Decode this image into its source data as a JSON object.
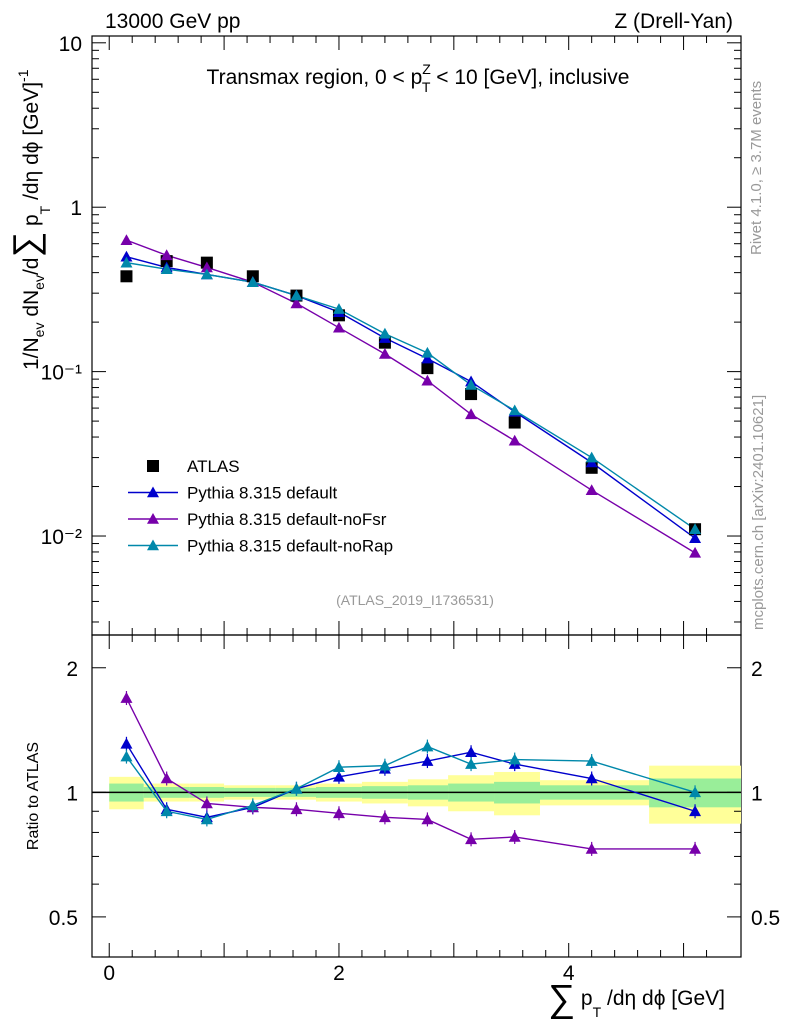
{
  "header": {
    "energy_label": "13000 GeV pp",
    "process_label": "Z (Drell-Yan)"
  },
  "side": {
    "rivet_label": "Rivet 4.1.0, ≥ 3.7M events",
    "mcplots_label": "mcplots.cern.ch [arXiv:2401.10621]"
  },
  "chart_data": [
    {
      "type": "scatter",
      "panel": "main",
      "title": "Transmax region, 0 < p_T^Z < 10 [GeV], inclusive",
      "ylabel": "1/N_ev dN_ev/d∑ p_T /dη dϕ [GeV]^-1",
      "yscale": "log",
      "ylim": [
        0.0025,
        11
      ],
      "xlim": [
        -0.15,
        5.5
      ],
      "watermark": "(ATLAS_2019_I1736531)",
      "x": [
        0.15,
        0.5,
        0.85,
        1.25,
        1.63,
        2.0,
        2.4,
        2.77,
        3.15,
        3.53,
        4.2,
        5.1
      ],
      "series": [
        {
          "name": "ATLAS",
          "color": "#000000",
          "marker": "square",
          "values": [
            0.38,
            0.47,
            0.46,
            0.38,
            0.29,
            0.22,
            0.15,
            0.105,
            0.073,
            0.049,
            0.026,
            0.011
          ]
        },
        {
          "name": "Pythia 8.315 default",
          "color": "#0000cc",
          "marker": "triangle",
          "values": [
            0.5,
            0.43,
            0.39,
            0.35,
            0.29,
            0.23,
            0.16,
            0.12,
            0.087,
            0.057,
            0.028,
            0.0097
          ]
        },
        {
          "name": "Pythia 8.315 default-noFsr",
          "color": "#7700aa",
          "marker": "triangle",
          "values": [
            0.63,
            0.51,
            0.43,
            0.35,
            0.26,
            0.185,
            0.128,
            0.088,
            0.055,
            0.038,
            0.019,
            0.0079
          ]
        },
        {
          "name": "Pythia 8.315 default-noRap",
          "color": "#0088aa",
          "marker": "triangle",
          "values": [
            0.46,
            0.42,
            0.39,
            0.35,
            0.29,
            0.24,
            0.17,
            0.13,
            0.083,
            0.058,
            0.03,
            0.011
          ]
        }
      ],
      "yticks": [
        {
          "value": 0.01,
          "label": "10⁻²"
        },
        {
          "value": 0.1,
          "label": "10⁻¹"
        },
        {
          "value": 1,
          "label": "1"
        },
        {
          "value": 10,
          "label": "10"
        }
      ]
    },
    {
      "type": "line",
      "panel": "ratio",
      "ylabel": "Ratio to ATLAS",
      "xlabel": "∑ p_T /dη dϕ [GeV]",
      "yscale": "log",
      "ylim": [
        0.4,
        2.4
      ],
      "xlim": [
        -0.15,
        5.5
      ],
      "x": [
        0.15,
        0.5,
        0.85,
        1.25,
        1.63,
        2.0,
        2.4,
        2.77,
        3.15,
        3.53,
        4.2,
        5.1
      ],
      "series": [
        {
          "name": "Pythia 8.315 default",
          "color": "#0000cc",
          "values": [
            1.31,
            0.91,
            0.87,
            0.92,
            1.02,
            1.09,
            1.14,
            1.19,
            1.25,
            1.17,
            1.08,
            0.9
          ]
        },
        {
          "name": "Pythia 8.315 default-noFsr",
          "color": "#7700aa",
          "values": [
            1.69,
            1.08,
            0.94,
            0.92,
            0.91,
            0.89,
            0.87,
            0.86,
            0.77,
            0.78,
            0.73,
            0.73
          ]
        },
        {
          "name": "Pythia 8.315 default-noRap",
          "color": "#0088aa",
          "values": [
            1.22,
            0.9,
            0.86,
            0.93,
            1.02,
            1.15,
            1.16,
            1.29,
            1.17,
            1.2,
            1.19,
            1.0
          ]
        }
      ],
      "bands": {
        "bin_edges": [
          0.0,
          0.3,
          0.7,
          1.0,
          1.45,
          1.8,
          2.2,
          2.6,
          2.95,
          3.35,
          3.75,
          4.7,
          5.5
        ],
        "green": [
          0.05,
          0.03,
          0.03,
          0.025,
          0.025,
          0.03,
          0.035,
          0.04,
          0.05,
          0.06,
          0.04,
          0.08
        ],
        "yellow": [
          0.09,
          0.05,
          0.05,
          0.04,
          0.04,
          0.05,
          0.06,
          0.075,
          0.1,
          0.12,
          0.07,
          0.16
        ]
      },
      "yticks": [
        {
          "value": 0.5,
          "label": "0.5"
        },
        {
          "value": 1,
          "label": "1"
        },
        {
          "value": 2,
          "label": "2"
        }
      ],
      "xticks": [
        {
          "value": 0,
          "label": "0"
        },
        {
          "value": 2,
          "label": "2"
        },
        {
          "value": 4,
          "label": "4"
        }
      ]
    }
  ]
}
